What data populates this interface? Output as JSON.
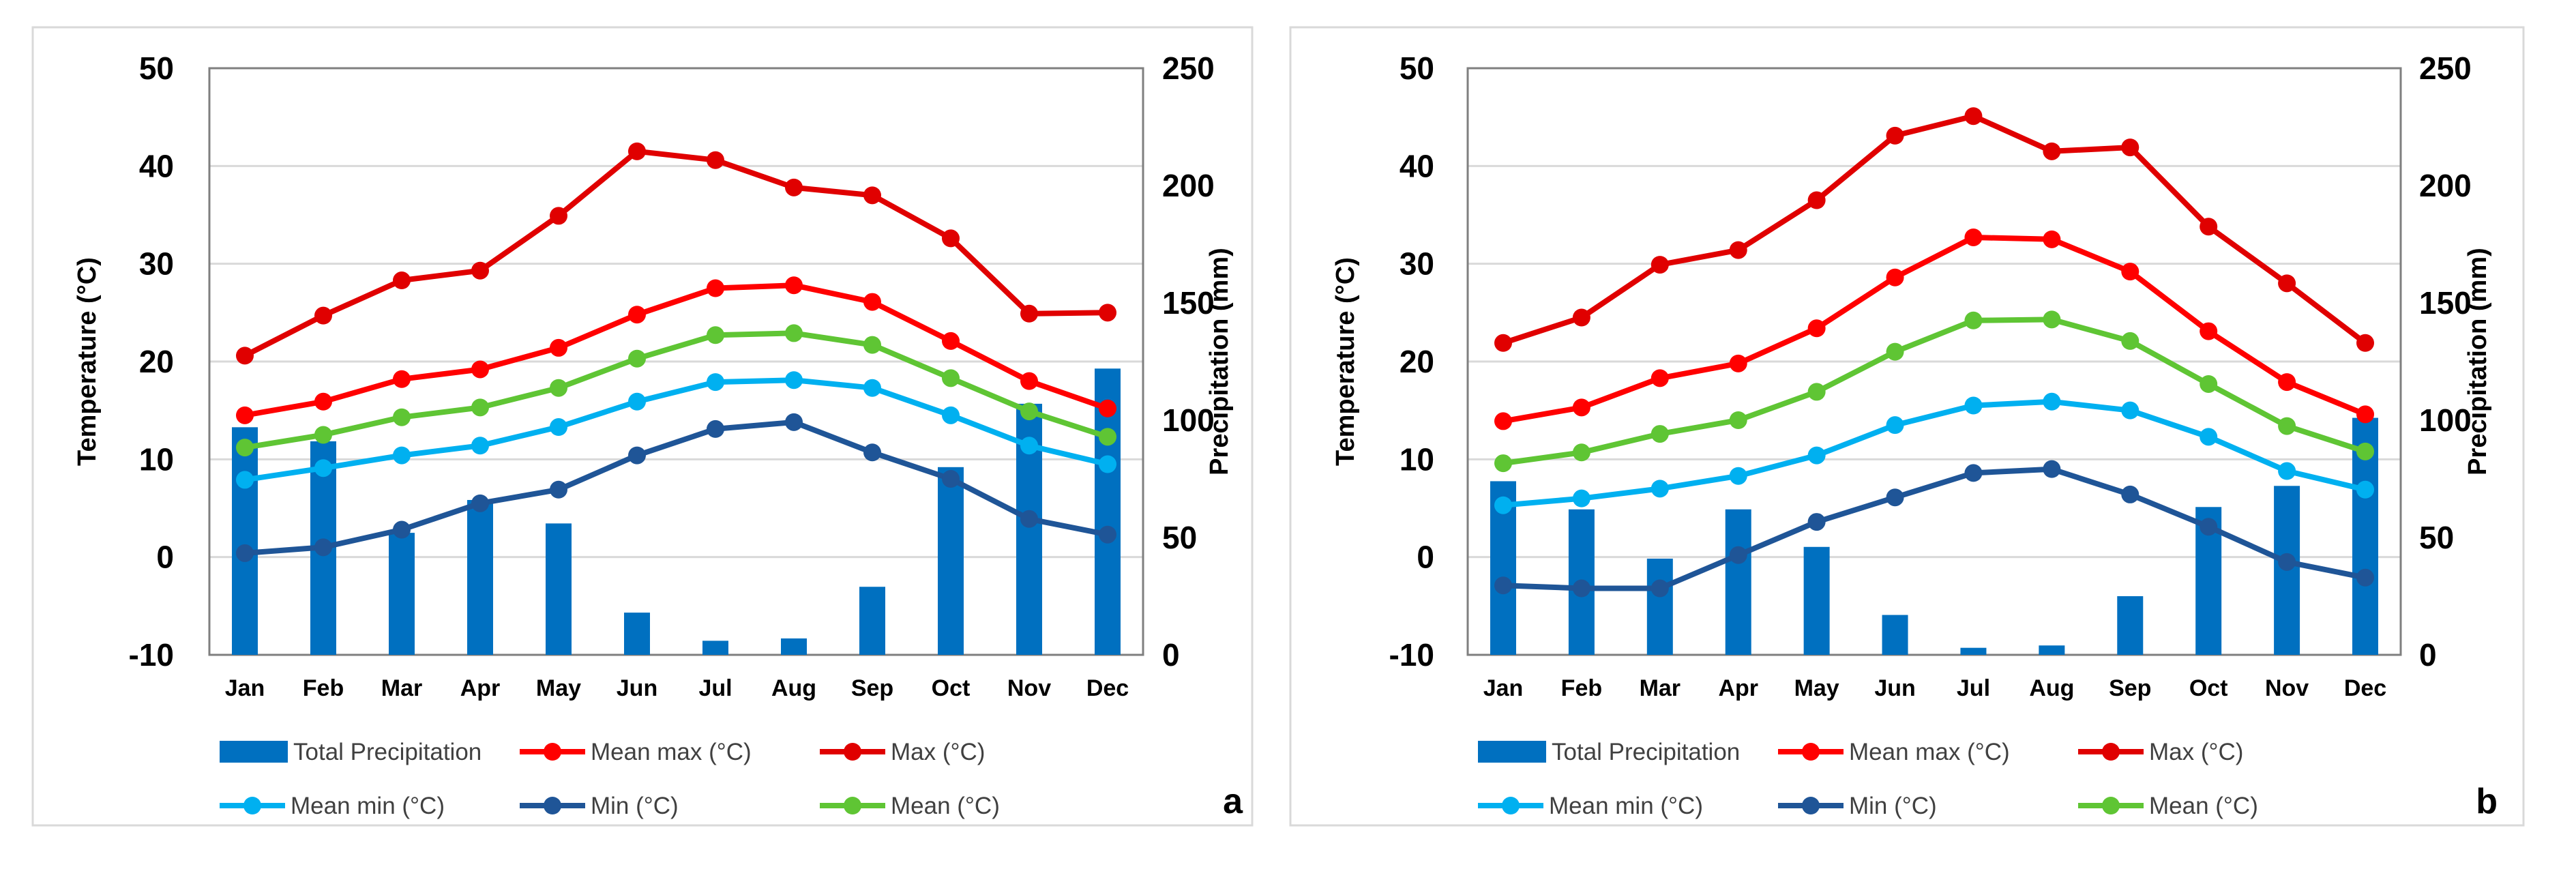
{
  "chart_data": [
    {
      "type": "bar+line",
      "panel_label": "a",
      "categories": [
        "Jan",
        "Feb",
        "Mar",
        "Apr",
        "May",
        "Jun",
        "Jul",
        "Aug",
        "Sep",
        "Oct",
        "Nov",
        "Dec"
      ],
      "ylabel": "Temperature (°C)",
      "y2label": "Precipitation (mm)",
      "ylim": [
        -10,
        50
      ],
      "y2lim": [
        0,
        250
      ],
      "yticks": [
        "-10",
        "0",
        "10",
        "20",
        "30",
        "40",
        "50"
      ],
      "y2ticks": [
        "0",
        "50",
        "100",
        "150",
        "200",
        "250"
      ],
      "grid": true,
      "legend_position": "bottom",
      "bars": {
        "name": "Total Precipitation",
        "color": "#0070C0",
        "values": [
          97,
          91,
          52,
          66,
          56,
          18,
          6,
          7,
          29,
          80,
          107,
          122
        ]
      },
      "series": [
        {
          "name": "Mean max (°C)",
          "color": "#FF0000",
          "values": [
            14.5,
            15.9,
            18.2,
            19.2,
            21.4,
            24.8,
            27.5,
            27.8,
            26.1,
            22.1,
            18.0,
            15.2
          ]
        },
        {
          "name": "Max (°C)",
          "color": "#E00000",
          "values": [
            20.6,
            24.7,
            28.3,
            29.3,
            34.9,
            41.5,
            40.6,
            37.8,
            37.0,
            32.6,
            24.9,
            25.0
          ]
        },
        {
          "name": "Mean min (°C)",
          "color": "#00B0F0",
          "values": [
            7.9,
            9.1,
            10.4,
            11.4,
            13.3,
            15.9,
            17.9,
            18.1,
            17.3,
            14.5,
            11.4,
            9.5
          ]
        },
        {
          "name": "Min (°C)",
          "color": "#1F5597",
          "values": [
            0.4,
            1.0,
            2.8,
            5.5,
            6.9,
            10.4,
            13.1,
            13.8,
            10.7,
            8.0,
            3.9,
            2.3
          ]
        },
        {
          "name": "Mean (°C)",
          "color": "#5FC534",
          "values": [
            11.2,
            12.5,
            14.3,
            15.3,
            17.3,
            20.3,
            22.7,
            22.9,
            21.7,
            18.3,
            14.9,
            12.3
          ]
        }
      ]
    },
    {
      "type": "bar+line",
      "panel_label": "b",
      "categories": [
        "Jan",
        "Feb",
        "Mar",
        "Apr",
        "May",
        "Jun",
        "Jul",
        "Aug",
        "Sep",
        "Oct",
        "Nov",
        "Dec"
      ],
      "ylabel": "Temperature (°C)",
      "y2label": "Precipitation (mm)",
      "ylim": [
        -10,
        50
      ],
      "y2lim": [
        0,
        250
      ],
      "yticks": [
        "-10",
        "0",
        "10",
        "20",
        "30",
        "40",
        "50"
      ],
      "y2ticks": [
        "0",
        "50",
        "100",
        "150",
        "200",
        "250"
      ],
      "grid": true,
      "legend_position": "bottom",
      "bars": {
        "name": "Total Precipitation",
        "color": "#0070C0",
        "values": [
          74,
          62,
          41,
          62,
          46,
          17,
          3,
          4,
          25,
          63,
          72,
          101
        ]
      },
      "series": [
        {
          "name": "Mean max (°C)",
          "color": "#FF0000",
          "values": [
            13.9,
            15.3,
            18.3,
            19.8,
            23.4,
            28.6,
            32.7,
            32.5,
            29.2,
            23.1,
            17.9,
            14.6
          ]
        },
        {
          "name": "Max (°C)",
          "color": "#E00000",
          "values": [
            21.9,
            24.5,
            29.9,
            31.4,
            36.5,
            43.1,
            45.1,
            41.5,
            41.9,
            33.8,
            28.0,
            21.9
          ]
        },
        {
          "name": "Mean min (°C)",
          "color": "#00B0F0",
          "values": [
            5.3,
            6.0,
            7.0,
            8.3,
            10.4,
            13.5,
            15.5,
            15.9,
            15.0,
            12.3,
            8.8,
            6.9
          ]
        },
        {
          "name": "Min (°C)",
          "color": "#1F5597",
          "values": [
            -2.9,
            -3.2,
            -3.2,
            0.2,
            3.6,
            6.1,
            8.6,
            9.0,
            6.4,
            3.1,
            -0.5,
            -2.1
          ]
        },
        {
          "name": "Mean (°C)",
          "color": "#5FC534",
          "values": [
            9.6,
            10.7,
            12.6,
            14.0,
            16.9,
            21.0,
            24.2,
            24.3,
            22.1,
            17.7,
            13.4,
            10.8
          ]
        }
      ]
    }
  ]
}
